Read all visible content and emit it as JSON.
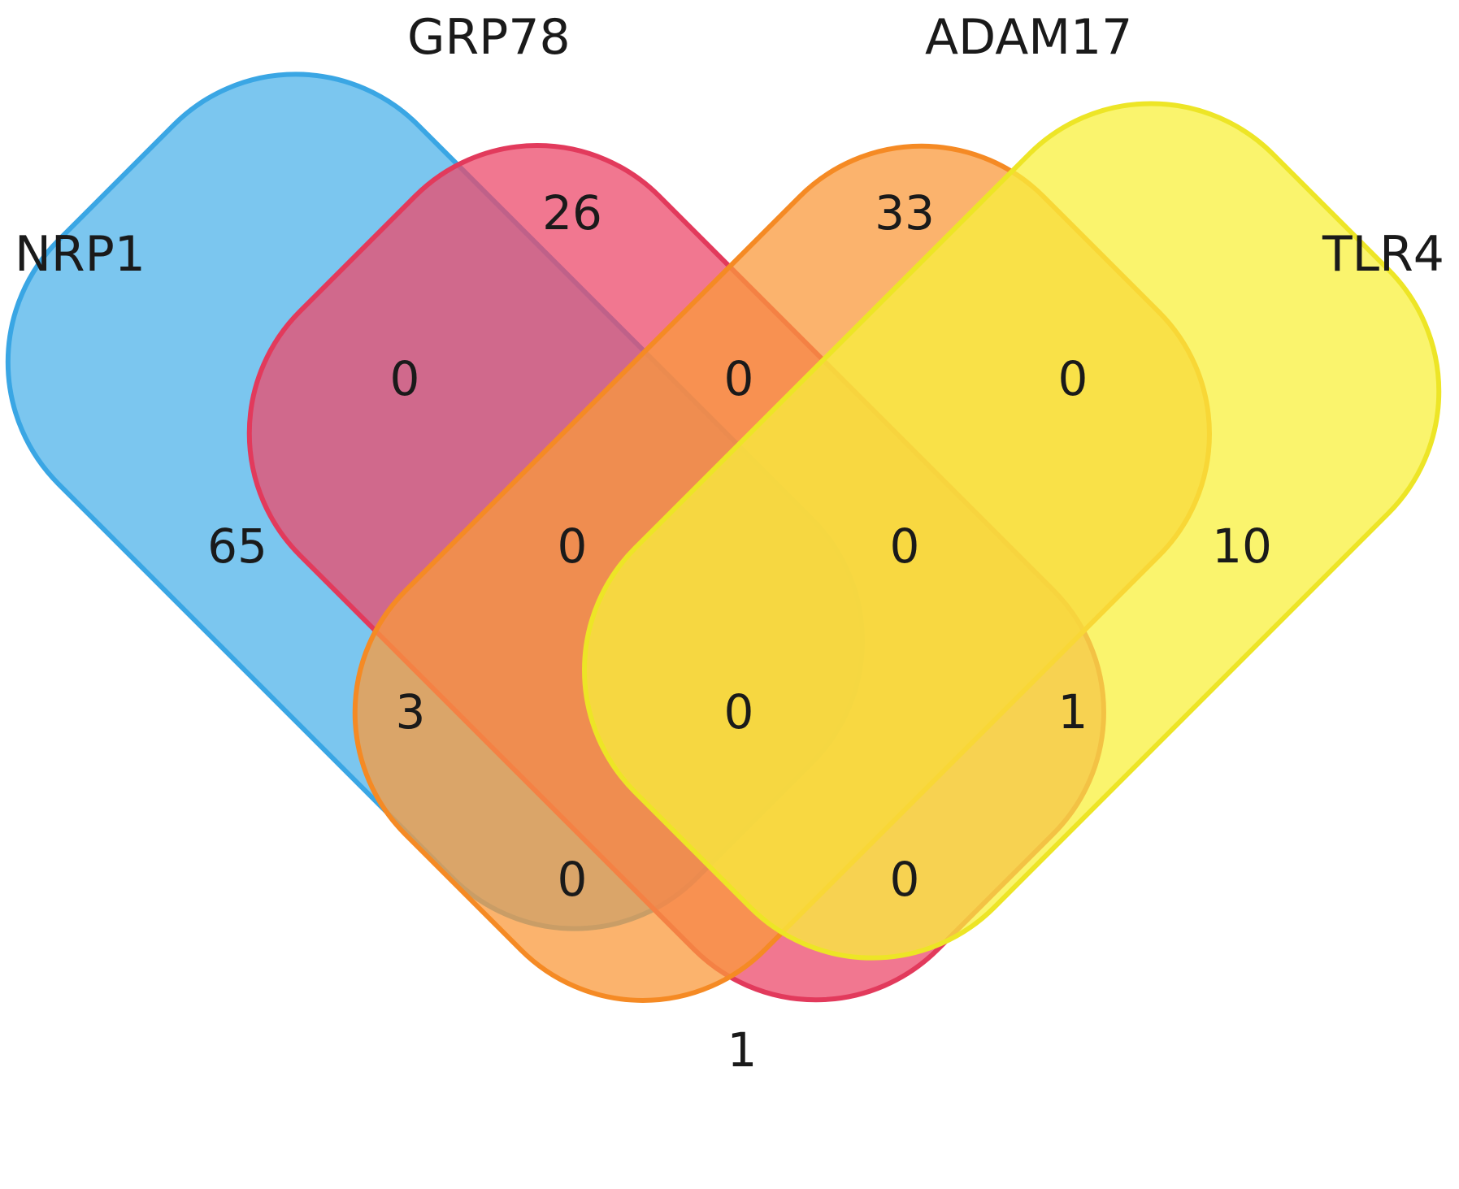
{
  "sets": {
    "nrp1": {
      "label": "NRP1",
      "color": "#4FB3EA"
    },
    "grp78": {
      "label": "GRP78",
      "color": "#EC4A6B"
    },
    "adam17": {
      "label": "ADAM17",
      "color": "#FA9A3C"
    },
    "tlr4": {
      "label": "TLR4",
      "color": "#F8F03C"
    }
  },
  "regions": {
    "nrp1_only": "65",
    "grp78_only": "26",
    "adam17_only": "33",
    "tlr4_only": "10",
    "nrp1_grp78": "0",
    "grp78_adam17": "0",
    "adam17_tlr4": "0",
    "nrp1_grp78_adam17": "0",
    "grp78_adam17_tlr4": "0",
    "nrp1_adam17": "3",
    "all_four": "0",
    "grp78_tlr4": "1",
    "nrp1_adam17_tlr4": "0",
    "nrp1_grp78_tlr4": "0",
    "nrp1_tlr4": "1"
  }
}
